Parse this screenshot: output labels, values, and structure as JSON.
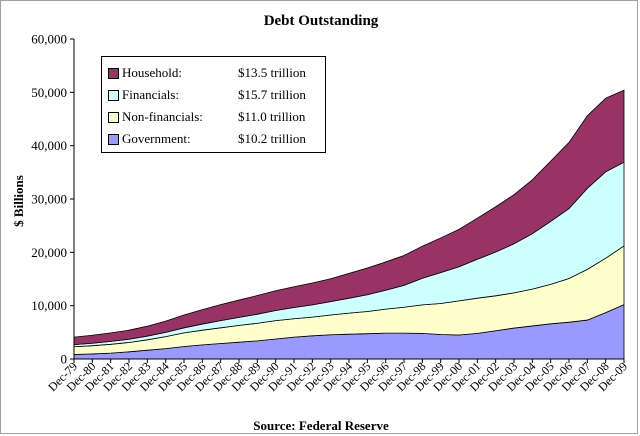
{
  "chart_data": {
    "type": "area",
    "stacked": true,
    "title": "Debt Outstanding",
    "ylabel": "$ Billions",
    "xlabel": "",
    "source": "Source:  Federal Reserve",
    "ylim": [
      0,
      60000
    ],
    "y_ticks": [
      "0",
      "10,000",
      "20,000",
      "30,000",
      "40,000",
      "50,000",
      "60,000"
    ],
    "x": [
      "Dec-79",
      "Dec-80",
      "Dec-81",
      "Dec-82",
      "Dec-83",
      "Dec-84",
      "Dec-85",
      "Dec-86",
      "Dec-87",
      "Dec-88",
      "Dec-89",
      "Dec-90",
      "Dec-91",
      "Dec-92",
      "Dec-93",
      "Dec-94",
      "Dec-95",
      "Dec-96",
      "Dec-97",
      "Dec-98",
      "Dec-99",
      "Dec-00",
      "Dec-01",
      "Dec-02",
      "Dec-03",
      "Dec-04",
      "Dec-05",
      "Dec-06",
      "Dec-07",
      "Dec-08",
      "Dec-09"
    ],
    "grid": false,
    "legend_position": "top-left",
    "series": [
      {
        "name": "Government:",
        "label_value": "$10.2 trillion",
        "color": "#9999ff",
        "values": [
          850,
          950,
          1100,
          1350,
          1650,
          1950,
          2350,
          2650,
          2900,
          3150,
          3400,
          3750,
          4100,
          4350,
          4550,
          4650,
          4750,
          4850,
          4850,
          4800,
          4600,
          4500,
          4800,
          5300,
          5800,
          6200,
          6600,
          6900,
          7300,
          8700,
          10200
        ]
      },
      {
        "name": "Non-financials:",
        "label_value": "$11.0 trillion",
        "color": "#ffffcc",
        "values": [
          1450,
          1550,
          1650,
          1750,
          1950,
          2250,
          2550,
          2750,
          2950,
          3150,
          3300,
          3450,
          3450,
          3500,
          3700,
          3950,
          4150,
          4500,
          4850,
          5350,
          5800,
          6400,
          6600,
          6550,
          6600,
          6900,
          7400,
          8200,
          9500,
          10200,
          11000
        ]
      },
      {
        "name": "Financials:",
        "label_value": "$15.7 trillion",
        "color": "#ccffff",
        "values": [
          400,
          450,
          550,
          600,
          700,
          800,
          950,
          1150,
          1350,
          1500,
          1700,
          1900,
          2100,
          2300,
          2500,
          2800,
          3150,
          3550,
          4100,
          5000,
          5800,
          6400,
          7300,
          8200,
          9200,
          10400,
          11800,
          13100,
          15200,
          16200,
          15700
        ]
      },
      {
        "name": "Household:",
        "label_value": "$13.5 trillion",
        "color": "#993366",
        "values": [
          1400,
          1500,
          1600,
          1700,
          1850,
          2100,
          2400,
          2700,
          3000,
          3250,
          3500,
          3700,
          3900,
          4100,
          4300,
          4650,
          5000,
          5300,
          5600,
          6000,
          6500,
          7000,
          7700,
          8500,
          9200,
          10100,
          11300,
          12400,
          13600,
          13800,
          13500
        ]
      }
    ]
  }
}
